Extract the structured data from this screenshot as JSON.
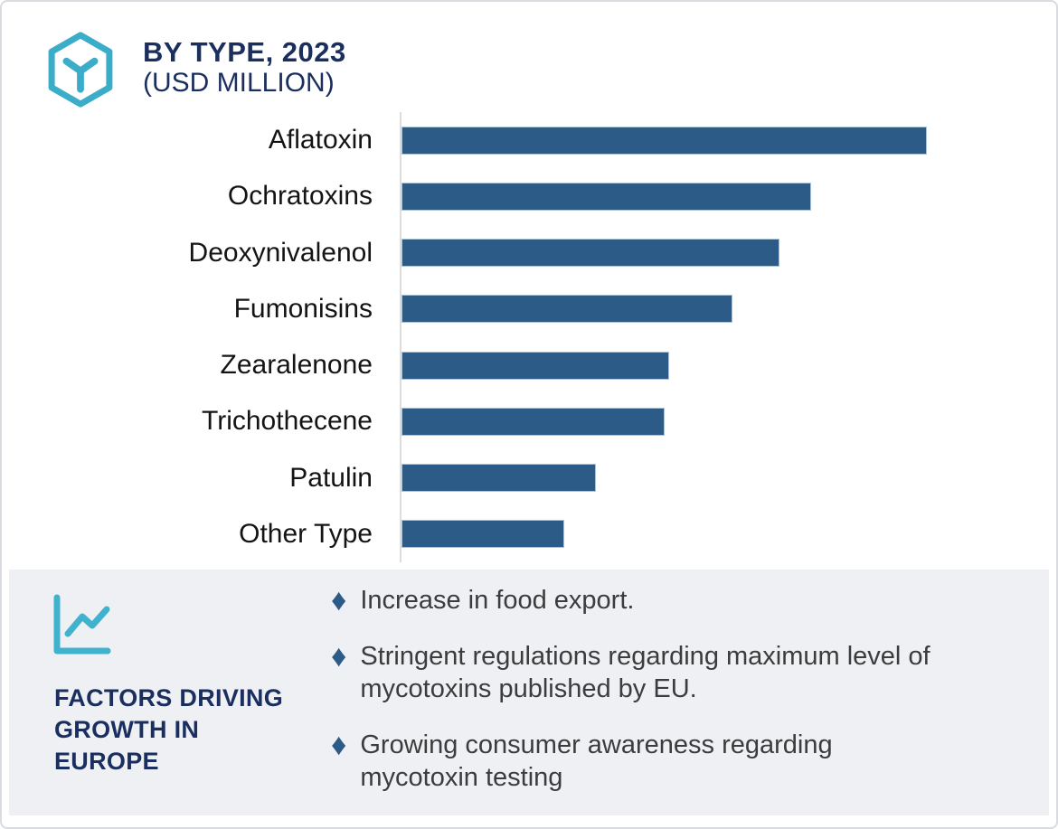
{
  "header": {
    "title_line1": "BY TYPE, 2023",
    "title_line2": "(USD MILLION)",
    "icon": "hexagon-cube-icon",
    "icon_color": "#3badc9",
    "title_color": "#1b2f5e"
  },
  "chart_data": {
    "type": "bar",
    "orientation": "horizontal",
    "title": "BY TYPE, 2023 (USD MILLION)",
    "xlabel": "",
    "ylabel": "",
    "categories": [
      "Aflatoxin",
      "Ochratoxins",
      "Deoxynivalenol",
      "Fumonisins",
      "Zearalenone",
      "Trichothecene",
      "Patulin",
      "Other Type"
    ],
    "values": [
      100,
      78,
      72,
      63,
      51,
      50,
      37,
      31
    ],
    "value_scale_note": "relative units, longest bar = 100; no numeric axis ticks shown in chart",
    "grid": false,
    "legend": false,
    "bar_color": "#2d5b87",
    "bar_border_color": "#aac4da",
    "axis_line_color": "#dcdcdc"
  },
  "factors_panel": {
    "icon": "line-chart-icon",
    "icon_color": "#41b2ce",
    "heading": "FACTORS DRIVING\nGROWTH IN\nEUROPE",
    "marker_glyph": "♦",
    "marker_color": "#2d5b87",
    "background": "#eef0f4",
    "bullets": [
      "Increase in food export.",
      "Stringent regulations regarding maximum level of\nmycotoxins published by EU.",
      "Growing consumer awareness regarding\nmycotoxin testing"
    ]
  }
}
